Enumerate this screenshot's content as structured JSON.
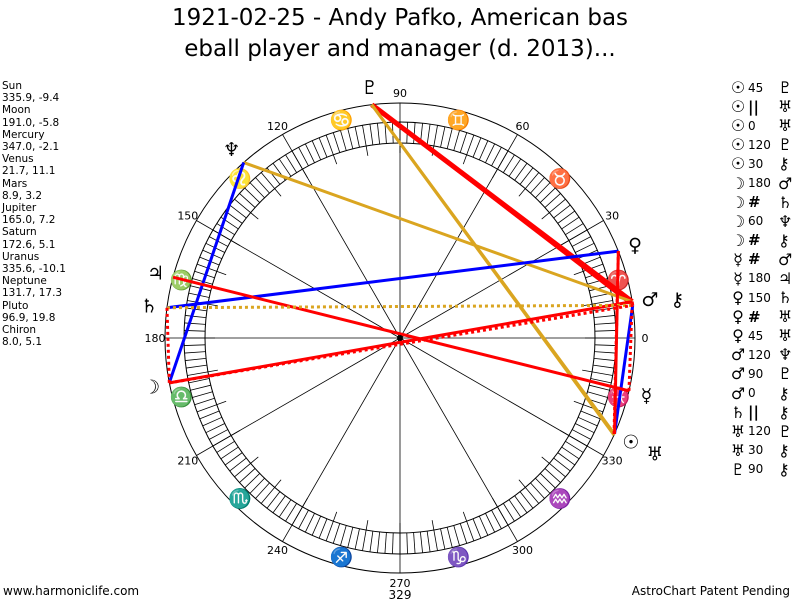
{
  "title": {
    "line1": "1921-02-25 - Andy Pafko, American bas",
    "line2": "eball player and manager (d. 2013)..."
  },
  "planets": [
    {
      "name": "Sun",
      "coords": "335.9, -9.4",
      "lon": 335.9,
      "glyph": "☉"
    },
    {
      "name": "Moon",
      "coords": "191.0, -5.8",
      "lon": 191.0,
      "glyph": "☽"
    },
    {
      "name": "Mercury",
      "coords": "347.0, -2.1",
      "lon": 347.0,
      "glyph": "☿"
    },
    {
      "name": "Venus",
      "coords": "21.7, 11.1",
      "lon": 21.7,
      "glyph": "♀"
    },
    {
      "name": "Mars",
      "coords": "8.9, 3.2",
      "lon": 8.9,
      "glyph": "♂"
    },
    {
      "name": "Jupiter",
      "coords": "165.0, 7.2",
      "lon": 165.0,
      "glyph": "♃"
    },
    {
      "name": "Saturn",
      "coords": "172.6, 5.1",
      "lon": 172.6,
      "glyph": "♄"
    },
    {
      "name": "Uranus",
      "coords": "335.6, -10.1",
      "lon": 335.6,
      "glyph": "♅"
    },
    {
      "name": "Neptune",
      "coords": "131.7, 17.3",
      "lon": 131.7,
      "glyph": "♆"
    },
    {
      "name": "Pluto",
      "coords": "96.9, 19.8",
      "lon": 96.9,
      "glyph": "♇"
    },
    {
      "name": "Chiron",
      "coords": "8.0, 5.1",
      "lon": 8.0,
      "glyph": "⚷"
    }
  ],
  "aspects": [
    {
      "a": "☉",
      "type": "45",
      "b": "♇"
    },
    {
      "a": "☉",
      "type": "||",
      "b": "♅"
    },
    {
      "a": "☉",
      "type": "0",
      "b": "♅"
    },
    {
      "a": "☉",
      "type": "120",
      "b": "♇"
    },
    {
      "a": "☉",
      "type": "30",
      "b": "⚷"
    },
    {
      "a": "☽",
      "type": "180",
      "b": "♂"
    },
    {
      "a": "☽",
      "type": "#",
      "b": "♄"
    },
    {
      "a": "☽",
      "type": "60",
      "b": "♆"
    },
    {
      "a": "☽",
      "type": "#",
      "b": "⚷"
    },
    {
      "a": "☿",
      "type": "#",
      "b": "♂"
    },
    {
      "a": "☿",
      "type": "180",
      "b": "♃"
    },
    {
      "a": "♀",
      "type": "150",
      "b": "♄"
    },
    {
      "a": "♀",
      "type": "#",
      "b": "♅"
    },
    {
      "a": "♀",
      "type": "45",
      "b": "♅"
    },
    {
      "a": "♂",
      "type": "120",
      "b": "♆"
    },
    {
      "a": "♂",
      "type": "90",
      "b": "♇"
    },
    {
      "a": "♂",
      "type": "0",
      "b": "⚷"
    },
    {
      "a": "♄",
      "type": "||",
      "b": "⚷"
    },
    {
      "a": "♅",
      "type": "120",
      "b": "♇"
    },
    {
      "a": "♅",
      "type": "30",
      "b": "⚷"
    },
    {
      "a": "♇",
      "type": "90",
      "b": "⚷"
    }
  ],
  "wheel": {
    "degree_labels": [
      "0",
      "30",
      "60",
      "90",
      "120",
      "150",
      "180",
      "210",
      "240",
      "270",
      "300",
      "330"
    ],
    "signs": [
      "♈",
      "♉",
      "♊",
      "♋",
      "♌",
      "♍",
      "♎",
      "♏",
      "♐",
      "♑",
      "♒",
      "♓"
    ],
    "center_label": "329"
  },
  "aspect_lines": [
    {
      "p1": 9,
      "p2": 4,
      "color": "#ff0000",
      "style": "thick"
    },
    {
      "p1": 9,
      "p2": 10,
      "color": "#ff0000",
      "style": "solid"
    },
    {
      "p1": 9,
      "p2": 0,
      "color": "#daa520",
      "style": "solid"
    },
    {
      "p1": 9,
      "p2": 7,
      "color": "#daa520",
      "style": "solid"
    },
    {
      "p1": 8,
      "p2": 4,
      "color": "#daa520",
      "style": "solid"
    },
    {
      "p1": 8,
      "p2": 1,
      "color": "#0000ff",
      "style": "solid"
    },
    {
      "p1": 3,
      "p2": 6,
      "color": "#0000ff",
      "style": "solid"
    },
    {
      "p1": 0,
      "p2": 10,
      "color": "#0000ff",
      "style": "solid"
    },
    {
      "p1": 5,
      "p2": 2,
      "color": "#ff0000",
      "style": "solid"
    },
    {
      "p1": 1,
      "p2": 4,
      "color": "#ff0000",
      "style": "solid"
    },
    {
      "p1": 0,
      "p2": 3,
      "color": "#ff0000",
      "style": "solid"
    },
    {
      "p1": 4,
      "p2": 10,
      "color": "#ff0000",
      "style": "solid"
    },
    {
      "p1": 6,
      "p2": 10,
      "color": "#daa520",
      "style": "dotted"
    },
    {
      "p1": 1,
      "p2": 6,
      "color": "#ff0000",
      "style": "dotted"
    },
    {
      "p1": 1,
      "p2": 10,
      "color": "#ff0000",
      "style": "dotted"
    },
    {
      "p1": 2,
      "p2": 4,
      "color": "#ff0000",
      "style": "dotted"
    },
    {
      "p1": 3,
      "p2": 7,
      "color": "#ff0000",
      "style": "dotted"
    }
  ],
  "footer": {
    "left": "www.harmoniclife.com",
    "right": "AstroChart Patent Pending"
  }
}
